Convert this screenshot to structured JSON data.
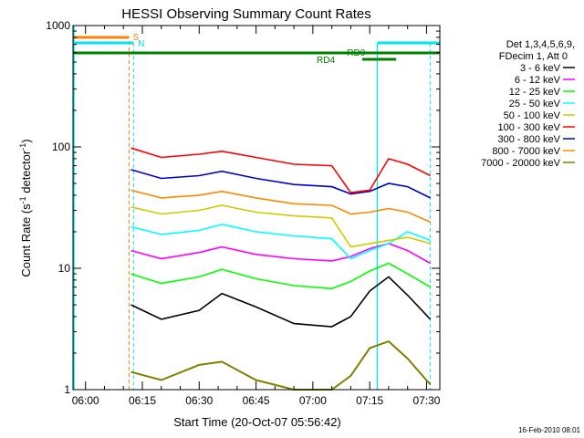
{
  "chart_data": {
    "type": "line",
    "title": "HESSI Observing Summary Count Rates",
    "xlabel": "Start Time (20-Oct-07 05:56:42)",
    "ylabel_main": "Count Rate (s",
    "ylabel_sup1": "-1",
    "ylabel_mid": " detector",
    "ylabel_sup2": "-1",
    "ylabel_end": ")",
    "yscale": "log",
    "ylim": [
      1,
      1000
    ],
    "xlim": [
      "05:56:42",
      "07:33:30"
    ],
    "xticks": [
      "06:00",
      "06:15",
      "06:30",
      "06:45",
      "07:00",
      "07:15",
      "07:30"
    ],
    "yticks": [
      "1",
      "10",
      "100",
      "1000"
    ],
    "footer": "16-Feb-2010 08:01",
    "legend": {
      "header1": "Det 1,3,4,5,6,9,",
      "header2": "FDecim 1, Att 0",
      "position": "right"
    },
    "series": [
      {
        "name": "3 - 6 keV",
        "color": "#000000",
        "x": [
          "06:12",
          "06:20",
          "06:30",
          "06:36",
          "06:45",
          "06:55",
          "07:05",
          "07:10",
          "07:15",
          "07:20",
          "07:25",
          "07:31"
        ],
        "y": [
          5,
          3.8,
          4.5,
          6.2,
          4.8,
          3.5,
          3.3,
          4.0,
          6.5,
          8.5,
          6.0,
          3.8
        ]
      },
      {
        "name": "6 - 12 keV",
        "color": "#ff00ff",
        "x": [
          "06:12",
          "06:20",
          "06:30",
          "06:36",
          "06:45",
          "06:55",
          "07:05",
          "07:10",
          "07:15",
          "07:20",
          "07:25",
          "07:31"
        ],
        "y": [
          14,
          12,
          13.5,
          15,
          13,
          12,
          11.5,
          12.5,
          14.5,
          16,
          14,
          11
        ]
      },
      {
        "name": "12 - 25 keV",
        "color": "#00ff00",
        "x": [
          "06:12",
          "06:20",
          "06:30",
          "06:36",
          "06:45",
          "06:55",
          "07:05",
          "07:10",
          "07:15",
          "07:20",
          "07:25",
          "07:31"
        ],
        "y": [
          9,
          7.5,
          8.5,
          9.8,
          8.2,
          7.2,
          6.8,
          7.8,
          9.5,
          11,
          9,
          7
        ]
      },
      {
        "name": "25 - 50 keV",
        "color": "#00ffff",
        "x": [
          "06:12",
          "06:20",
          "06:30",
          "06:36",
          "06:45",
          "06:55",
          "07:05",
          "07:10",
          "07:15",
          "07:20",
          "07:25",
          "07:31"
        ],
        "y": [
          22,
          19,
          20.5,
          23,
          20,
          18.5,
          17.5,
          12,
          14,
          16,
          20,
          17
        ]
      },
      {
        "name": "50 - 100 keV",
        "color": "#cccc00",
        "x": [
          "06:12",
          "06:20",
          "06:30",
          "06:36",
          "06:45",
          "06:55",
          "07:05",
          "07:10",
          "07:15",
          "07:20",
          "07:25",
          "07:31"
        ],
        "y": [
          32,
          28,
          30,
          33,
          29,
          27,
          26,
          15,
          16,
          17,
          18,
          16
        ]
      },
      {
        "name": "100 - 300 keV",
        "color": "#ff0000",
        "x": [
          "06:12",
          "06:20",
          "06:30",
          "06:36",
          "06:45",
          "06:55",
          "07:05",
          "07:10",
          "07:15",
          "07:20",
          "07:25",
          "07:31"
        ],
        "y": [
          98,
          82,
          87,
          92,
          82,
          72,
          70,
          42,
          44,
          80,
          72,
          58
        ]
      },
      {
        "name": "300 - 800 keV",
        "color": "#0000cc",
        "x": [
          "06:12",
          "06:20",
          "06:30",
          "06:36",
          "06:45",
          "06:55",
          "07:05",
          "07:10",
          "07:15",
          "07:20",
          "07:25",
          "07:31"
        ],
        "y": [
          65,
          55,
          58,
          63,
          55,
          49,
          47,
          41,
          43,
          50,
          47,
          38
        ]
      },
      {
        "name": "800 - 7000 keV",
        "color": "#ff8800",
        "x": [
          "06:12",
          "06:20",
          "06:30",
          "06:36",
          "06:45",
          "06:55",
          "07:05",
          "07:10",
          "07:15",
          "07:20",
          "07:25",
          "07:31"
        ],
        "y": [
          44,
          38,
          40,
          43,
          38,
          34,
          33,
          28,
          29,
          31,
          29,
          24
        ]
      },
      {
        "name": "7000 - 20000 keV",
        "color": "#808000",
        "x": [
          "06:12",
          "06:20",
          "06:30",
          "06:36",
          "06:45",
          "06:55",
          "07:05",
          "07:10",
          "07:15",
          "07:20",
          "07:25",
          "07:31"
        ],
        "y": [
          1.4,
          1.2,
          1.6,
          1.7,
          1.2,
          1.0,
          1.0,
          1.3,
          2.2,
          2.5,
          1.8,
          1.1
        ]
      }
    ],
    "annotations": {
      "rd0": "RD0",
      "rd4": "RD4",
      "s": "S",
      "n": "N"
    }
  },
  "colors": {
    "axis": "#000000",
    "cyan": "#00e5ee",
    "green": "#008000",
    "orange": "#ff7f00"
  }
}
